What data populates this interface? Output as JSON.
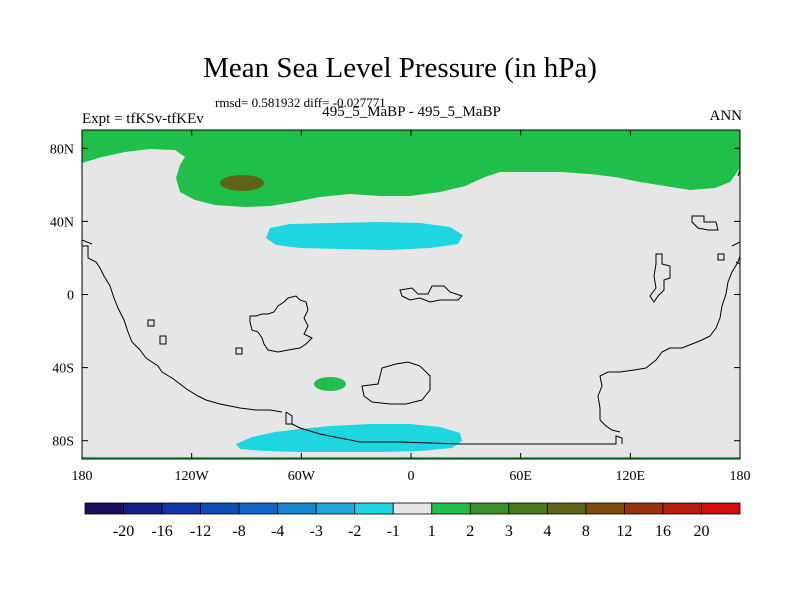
{
  "title": "Mean Sea Level Pressure (in hPa)",
  "stats": "rmsd= 0.581932 diff= -0.027771",
  "experiment": "Expt = tfKSv-tfKEv",
  "comparison": "495_5_MaBP - 495_5_MaBP",
  "season": "ANN",
  "lat_labels": [
    "80N",
    "40N",
    "0",
    "40S",
    "80S"
  ],
  "lon_labels": [
    "180",
    "120W",
    "60W",
    "0",
    "60E",
    "120E",
    "180"
  ],
  "colorbar": {
    "labels": [
      "-20",
      "-16",
      "-12",
      "-8",
      "-4",
      "-3",
      "-2",
      "-1",
      "1",
      "2",
      "3",
      "4",
      "8",
      "12",
      "16",
      "20"
    ],
    "colors": [
      "#1a0d5e",
      "#141f8c",
      "#1235a6",
      "#0f4db5",
      "#1166c4",
      "#1585cf",
      "#22a6dc",
      "#1ed6e0",
      "#e6e6e6",
      "#1fbf4a",
      "#3c8f2a",
      "#4a7a20",
      "#5e6317",
      "#7d4a10",
      "#9a3210",
      "#b51d10",
      "#d40c0c"
    ]
  },
  "colors": {
    "neutral": "#e6e6e6",
    "green": "#1fbf4a",
    "cyan": "#1ed6e0",
    "olive": "#5e6317"
  }
}
